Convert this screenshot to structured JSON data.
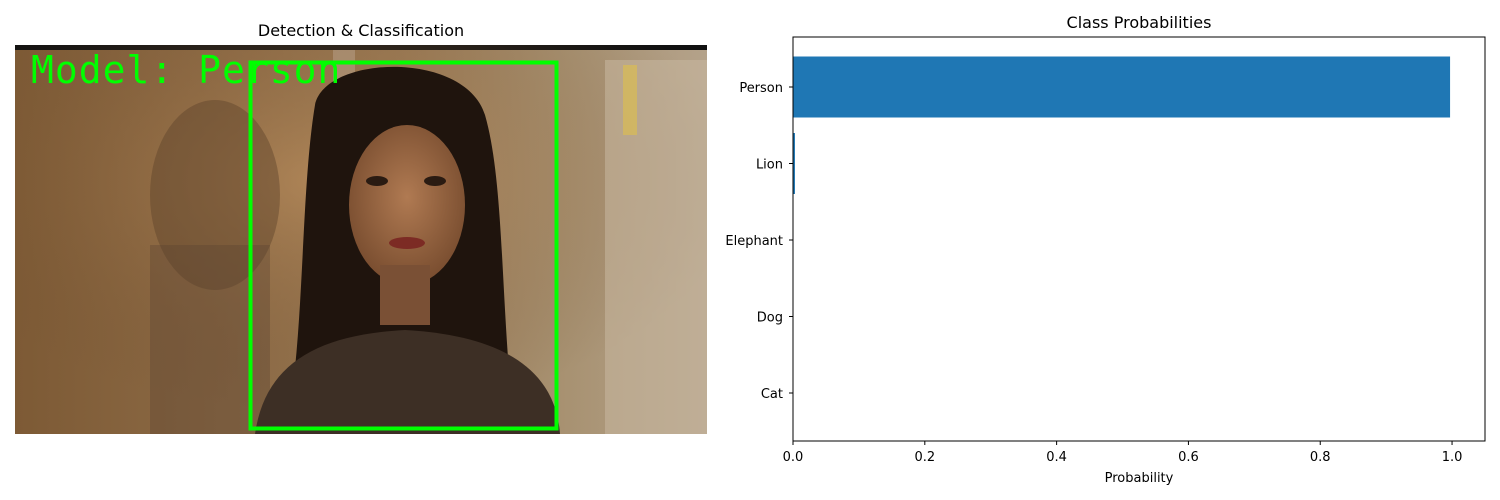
{
  "left_panel": {
    "title": "Detection & Classification",
    "overlay_label": "Model: Person",
    "box_color": "#00ff00"
  },
  "chart_data": {
    "type": "bar",
    "orientation": "horizontal",
    "title": "Class Probabilities",
    "xlabel": "Probability",
    "ylabel": "",
    "categories": [
      "Cat",
      "Dog",
      "Elephant",
      "Lion",
      "Person"
    ],
    "values": [
      0.0,
      0.0,
      0.0,
      0.003,
      0.997
    ],
    "xlim": [
      0,
      1.05
    ],
    "xticks": [
      "0.0",
      "0.2",
      "0.4",
      "0.6",
      "0.8",
      "1.0"
    ],
    "xtick_values": [
      0,
      0.2,
      0.4,
      0.6,
      0.8,
      1.0
    ],
    "bar_color": "#1f77b4",
    "grid": false,
    "legend": "none"
  }
}
